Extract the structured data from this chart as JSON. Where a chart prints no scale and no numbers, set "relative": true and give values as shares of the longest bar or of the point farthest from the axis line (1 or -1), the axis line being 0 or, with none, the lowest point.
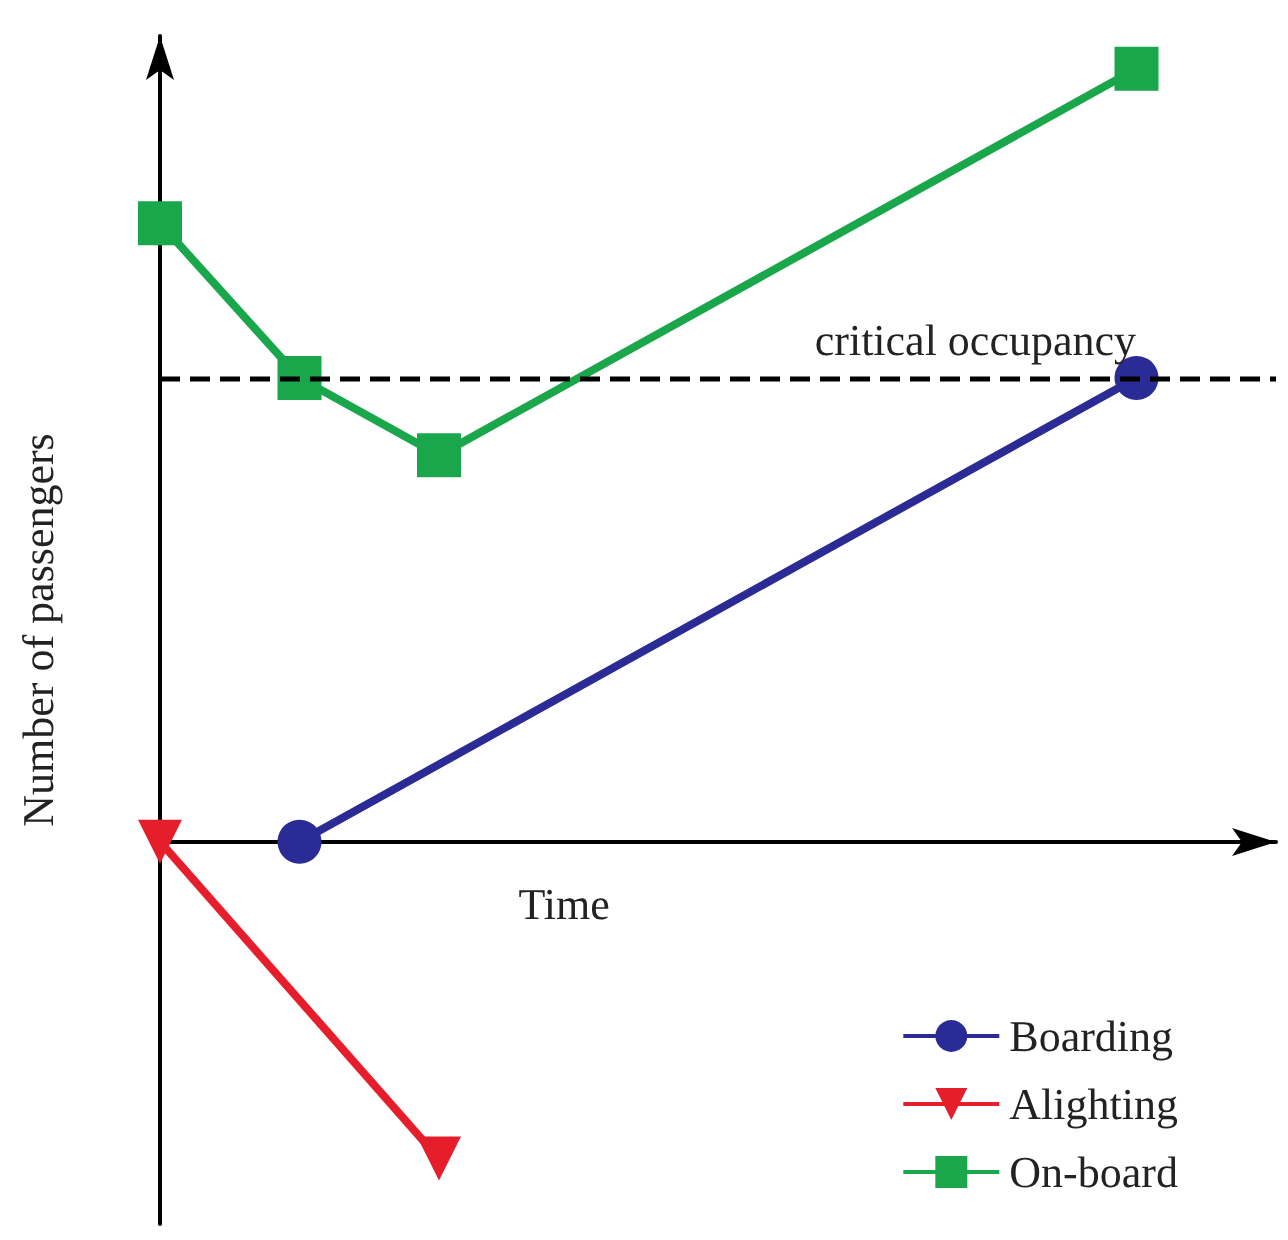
{
  "chart_data": {
    "type": "line",
    "relative": true,
    "xlabel": "Time",
    "ylabel": "Number of passengers",
    "grid": false,
    "legend": "bottom right",
    "categories": [
      null,
      null,
      null,
      null,
      null,
      null,
      null,
      null,
      null
    ],
    "series": [
      {
        "name": "Boarding",
        "color": "#2b2b96",
        "marker": "circle",
        "values": [
          null,
          0,
          null,
          null,
          null,
          null,
          null,
          0.6,
          null
        ]
      },
      {
        "name": "Alighting",
        "color": "#e61e2b",
        "marker": "triangle",
        "values": [
          0,
          null,
          -0.41,
          null,
          null,
          null,
          null,
          null,
          null
        ]
      },
      {
        "name": "On-board",
        "color": "#1aa64b",
        "marker": "square",
        "values": [
          0.8,
          0.6,
          0.5,
          null,
          null,
          null,
          null,
          1.0,
          null
        ]
      }
    ],
    "ref_lines": [
      {
        "axis": "y",
        "value": 0.6,
        "label": "critical occupancy",
        "color": "#000000",
        "line_style": "dashed"
      }
    ]
  }
}
